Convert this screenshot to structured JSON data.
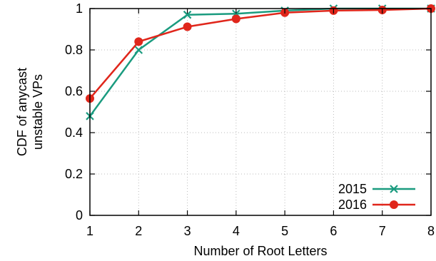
{
  "chart_data": {
    "type": "line",
    "xlabel": "Number of Root Letters",
    "ylabel": [
      "CDF of anycast",
      "unstable VPs"
    ],
    "x": [
      1,
      2,
      3,
      4,
      5,
      6,
      7,
      8
    ],
    "xlim": [
      1,
      8
    ],
    "ylim": [
      0,
      1
    ],
    "xticks": [
      1,
      2,
      3,
      4,
      5,
      6,
      7,
      8
    ],
    "yticks": [
      0,
      0.2,
      0.4,
      0.6,
      0.8,
      1
    ],
    "ytick_labels": [
      "0",
      "0.2",
      "0.4",
      "0.6",
      "0.8",
      "1"
    ],
    "grid": true,
    "legend_position": "bottom-right",
    "series": [
      {
        "name": "2015",
        "color": "#1a9b7f",
        "marker": "x-icon",
        "values": [
          0.48,
          0.8,
          0.97,
          0.975,
          0.99,
          1.0,
          1.0,
          1.0
        ]
      },
      {
        "name": "2016",
        "color": "#e0261b",
        "marker": "circle-icon",
        "values": [
          0.565,
          0.84,
          0.912,
          0.95,
          0.98,
          0.99,
          0.993,
          1.0
        ]
      }
    ]
  }
}
